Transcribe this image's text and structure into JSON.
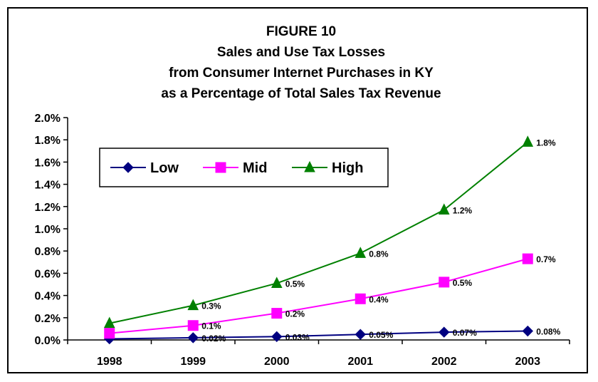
{
  "chart_data": {
    "type": "line",
    "title": [
      "FIGURE 10",
      "Sales and Use Tax Losses",
      "from Consumer Internet Purchases in KY",
      "as a Percentage of Total Sales Tax Revenue"
    ],
    "xlabel": "",
    "ylabel": "",
    "categories": [
      "1998",
      "1999",
      "2000",
      "2001",
      "2002",
      "2003"
    ],
    "ylim": [
      0,
      2.0
    ],
    "yticks": [
      "0.0%",
      "0.2%",
      "0.4%",
      "0.6%",
      "0.8%",
      "1.0%",
      "1.2%",
      "1.4%",
      "1.6%",
      "1.8%",
      "2.0%"
    ],
    "grid": false,
    "legend_position": "top-left",
    "series": [
      {
        "name": "Low",
        "color": "#000080",
        "marker": "diamond",
        "values": [
          0.01,
          0.02,
          0.03,
          0.05,
          0.07,
          0.08
        ],
        "labels": [
          "",
          "0.02%",
          "0.03%",
          "0.05%",
          "0.07%",
          "0.08%"
        ]
      },
      {
        "name": "Mid",
        "color": "#ff00ff",
        "marker": "square",
        "values": [
          0.06,
          0.13,
          0.24,
          0.37,
          0.52,
          0.73
        ],
        "labels": [
          "",
          "0.1%",
          "0.2%",
          "0.4%",
          "0.5%",
          "0.7%"
        ]
      },
      {
        "name": "High",
        "color": "#008000",
        "marker": "triangle",
        "values": [
          0.15,
          0.31,
          0.51,
          0.78,
          1.17,
          1.78
        ],
        "labels": [
          "",
          "0.3%",
          "0.5%",
          "0.8%",
          "1.2%",
          "1.8%"
        ]
      }
    ]
  }
}
